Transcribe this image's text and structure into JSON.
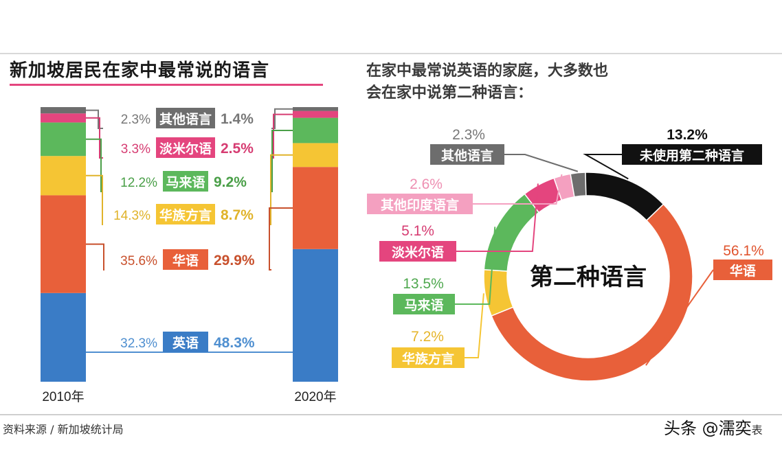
{
  "left_title": "新加坡居民在家中最常说的语言",
  "right_title_line1": "在家中最常说英语的家庭，大多数也",
  "right_title_line2": "会在家中说第二种语言：",
  "source": "资料来源 / 新加坡统计局",
  "watermark": "头条 @濡奕",
  "watermark_tail": "表",
  "chart_data": [
    {
      "type": "bar",
      "subtype": "stacked-100",
      "title": "新加坡居民在家中最常说的语言",
      "categories": [
        "2010年",
        "2020年"
      ],
      "series": [
        {
          "name": "英语",
          "values": [
            32.3,
            48.3
          ],
          "color": "#3a7cc6",
          "text_color": "#4f8fd0",
          "labels": [
            "32.3%",
            "48.3%"
          ]
        },
        {
          "name": "华语",
          "values": [
            35.6,
            29.9
          ],
          "color": "#e8603a",
          "text_color": "#c8502c",
          "labels": [
            "35.6%",
            "29.9%"
          ]
        },
        {
          "name": "华族方言",
          "values": [
            14.3,
            8.7
          ],
          "color": "#f5c534",
          "text_color": "#e0b32a",
          "labels": [
            "14.3%",
            "8.7%"
          ]
        },
        {
          "name": "马来语",
          "values": [
            12.2,
            9.2
          ],
          "color": "#5cb85c",
          "text_color": "#4a9f48",
          "labels": [
            "12.2%",
            "9.2%"
          ]
        },
        {
          "name": "淡米尔语",
          "values": [
            3.3,
            2.5
          ],
          "color": "#e4457e",
          "text_color": "#d63c72",
          "labels": [
            "3.3%",
            "2.5%"
          ]
        },
        {
          "name": "其他语言",
          "values": [
            2.3,
            1.4
          ],
          "color": "#6d6d6d",
          "text_color": "#777777",
          "labels": [
            "2.3%",
            "1.4%"
          ]
        }
      ]
    },
    {
      "type": "pie",
      "subtype": "donut",
      "title": "在家中最常说英语的家庭，大多数也会在家中说第二种语言：",
      "center_label": "第二种语言",
      "slices": [
        {
          "name": "华语",
          "value": 56.1,
          "label": "56.1%",
          "color": "#e8603a",
          "text_color": "#e0542e"
        },
        {
          "name": "华族方言",
          "value": 7.2,
          "label": "7.2%",
          "color": "#f5c534",
          "text_color": "#e6b52b"
        },
        {
          "name": "马来语",
          "value": 13.5,
          "label": "13.5%",
          "color": "#5cb85c",
          "text_color": "#4fa84f"
        },
        {
          "name": "淡米尔语",
          "value": 5.1,
          "label": "5.1%",
          "color": "#e4457e",
          "text_color": "#d63c72"
        },
        {
          "name": "其他印度语言",
          "value": 2.6,
          "label": "2.6%",
          "color": "#f4a0c0",
          "text_color": "#ee8fb2"
        },
        {
          "name": "其他语言",
          "value": 2.3,
          "label": "2.3%",
          "color": "#6d6d6d",
          "text_color": "#777777"
        },
        {
          "name": "未使用第二种语言",
          "value": 13.2,
          "label": "13.2%",
          "color": "#111111",
          "text_color": "#111111"
        }
      ]
    }
  ]
}
